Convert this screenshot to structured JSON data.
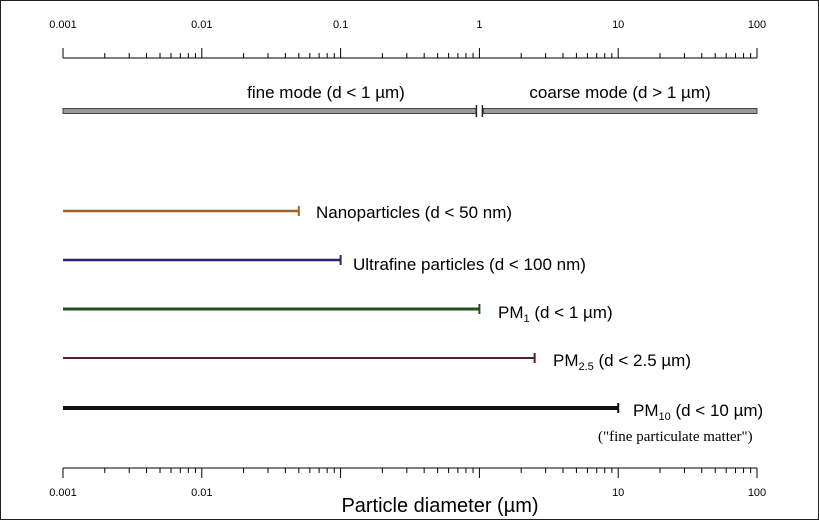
{
  "chart_data": {
    "type": "range-diagram",
    "axis": {
      "scale": "log",
      "range": [
        0.001,
        100
      ],
      "tick_labels": [
        "0.001",
        "0.01",
        "0.1",
        "1",
        "10",
        "100"
      ],
      "bottom_tick_labels": [
        "0.001",
        "0.01",
        "10",
        "100"
      ],
      "xlabel": "Particle diameter (µm)"
    },
    "modes": [
      {
        "label": "fine mode (d < 1 µm)",
        "from": 0.001,
        "to": 1
      },
      {
        "label": "coarse mode (d > 1 µm)",
        "from": 1,
        "to": 100
      }
    ],
    "ranges": [
      {
        "id": "nano",
        "label": "Nanoparticles (d < 50 nm)",
        "from": 0.001,
        "to": 0.05,
        "color": "#a0622a"
      },
      {
        "id": "ultrafine",
        "label": "Ultrafine particles (d < 100 nm)",
        "from": 0.001,
        "to": 0.1,
        "color": "#27276e"
      },
      {
        "id": "pm1",
        "label_main": "PM",
        "label_sub": "1",
        "label_rest": " (d < 1 µm)",
        "from": 0.001,
        "to": 1,
        "color": "#1f4f22"
      },
      {
        "id": "pm25",
        "label_main": "PM",
        "label_sub": "2.5",
        "label_rest": " (d < 2.5 µm)",
        "from": 0.001,
        "to": 2.5,
        "color": "#4a2424"
      },
      {
        "id": "pm10",
        "label_main": "PM",
        "label_sub": "10",
        "label_rest": " (d < 10 µm)",
        "note": "(\"fine particulate matter\")",
        "from": 0.001,
        "to": 10,
        "color": "#111111"
      }
    ]
  }
}
